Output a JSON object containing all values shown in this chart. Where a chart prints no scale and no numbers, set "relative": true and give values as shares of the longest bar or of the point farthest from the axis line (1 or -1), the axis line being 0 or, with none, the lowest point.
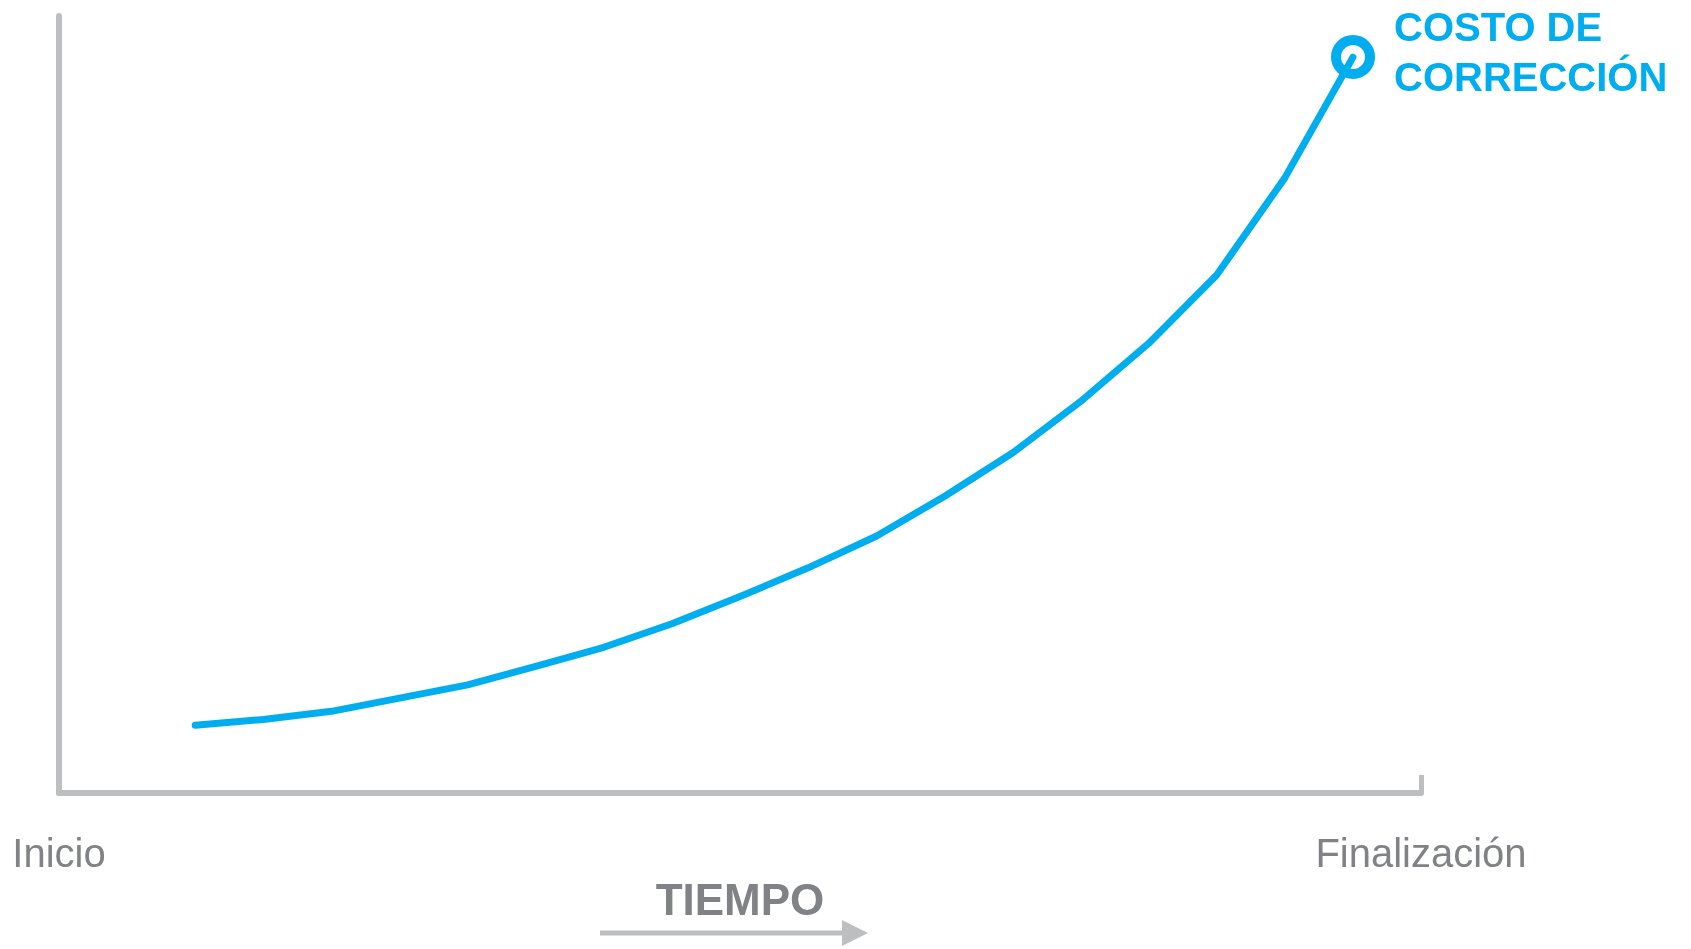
{
  "chart_data": {
    "type": "line",
    "relative": true,
    "xlabel": "TIEMPO",
    "categories": [
      "Inicio",
      null,
      null,
      null,
      null,
      null,
      null,
      null,
      null,
      null,
      null,
      null,
      null,
      null,
      null,
      null,
      null,
      null,
      null,
      null,
      "Finalización"
    ],
    "series": [
      {
        "color": "#00aeef",
        "values": [
          null,
          null,
          0.092,
          0.1,
          0.111,
          0.129,
          0.147,
          0.172,
          0.198,
          0.23,
          0.267,
          0.306,
          0.349,
          0.403,
          0.462,
          0.532,
          0.611,
          0.704,
          0.836,
          1,
          null
        ]
      }
    ],
    "annotations": [
      "COSTO DE CORRECCIÓN"
    ],
    "grid": false
  }
}
